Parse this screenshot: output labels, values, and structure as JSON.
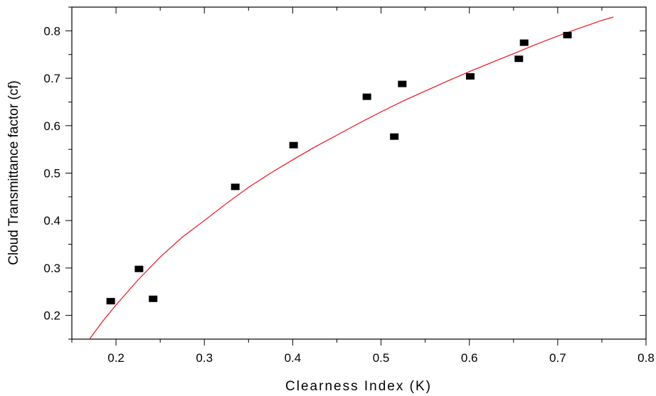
{
  "chart_data": {
    "type": "scatter",
    "title": "",
    "xlabel": "Clearness Index (K)",
    "ylabel": "Cloud Transmittance factor (cf)",
    "xlim": [
      0.15,
      0.8
    ],
    "ylim": [
      0.15,
      0.85
    ],
    "xticks": [
      "0.2",
      "0.3",
      "0.4",
      "0.5",
      "0.6",
      "0.7",
      "0.8"
    ],
    "yticks": [
      "0.2",
      "0.3",
      "0.4",
      "0.5",
      "0.6",
      "0.7",
      "0.8"
    ],
    "grid": false,
    "legend": "none",
    "series": [
      {
        "kind": "points",
        "marker": "square",
        "color": "#000000",
        "points": [
          {
            "x": 0.194,
            "y": 0.23
          },
          {
            "x": 0.226,
            "y": 0.298
          },
          {
            "x": 0.242,
            "y": 0.235
          },
          {
            "x": 0.335,
            "y": 0.471
          },
          {
            "x": 0.401,
            "y": 0.559
          },
          {
            "x": 0.484,
            "y": 0.661
          },
          {
            "x": 0.515,
            "y": 0.577
          },
          {
            "x": 0.524,
            "y": 0.688
          },
          {
            "x": 0.601,
            "y": 0.704
          },
          {
            "x": 0.656,
            "y": 0.741
          },
          {
            "x": 0.662,
            "y": 0.775
          },
          {
            "x": 0.711,
            "y": 0.791
          }
        ]
      },
      {
        "kind": "fit-line",
        "color": "#e8141c",
        "points": [
          {
            "x": 0.17,
            "y": 0.15
          },
          {
            "x": 0.185,
            "y": 0.188
          },
          {
            "x": 0.2,
            "y": 0.222
          },
          {
            "x": 0.225,
            "y": 0.275
          },
          {
            "x": 0.25,
            "y": 0.323
          },
          {
            "x": 0.275,
            "y": 0.365
          },
          {
            "x": 0.3,
            "y": 0.4
          },
          {
            "x": 0.325,
            "y": 0.436
          },
          {
            "x": 0.35,
            "y": 0.47
          },
          {
            "x": 0.375,
            "y": 0.5
          },
          {
            "x": 0.4,
            "y": 0.528
          },
          {
            "x": 0.425,
            "y": 0.555
          },
          {
            "x": 0.45,
            "y": 0.58
          },
          {
            "x": 0.475,
            "y": 0.605
          },
          {
            "x": 0.5,
            "y": 0.629
          },
          {
            "x": 0.525,
            "y": 0.652
          },
          {
            "x": 0.55,
            "y": 0.673
          },
          {
            "x": 0.575,
            "y": 0.694
          },
          {
            "x": 0.6,
            "y": 0.714
          },
          {
            "x": 0.625,
            "y": 0.733
          },
          {
            "x": 0.65,
            "y": 0.752
          },
          {
            "x": 0.675,
            "y": 0.771
          },
          {
            "x": 0.7,
            "y": 0.789
          },
          {
            "x": 0.725,
            "y": 0.806
          },
          {
            "x": 0.75,
            "y": 0.822
          },
          {
            "x": 0.763,
            "y": 0.829
          }
        ]
      }
    ]
  }
}
